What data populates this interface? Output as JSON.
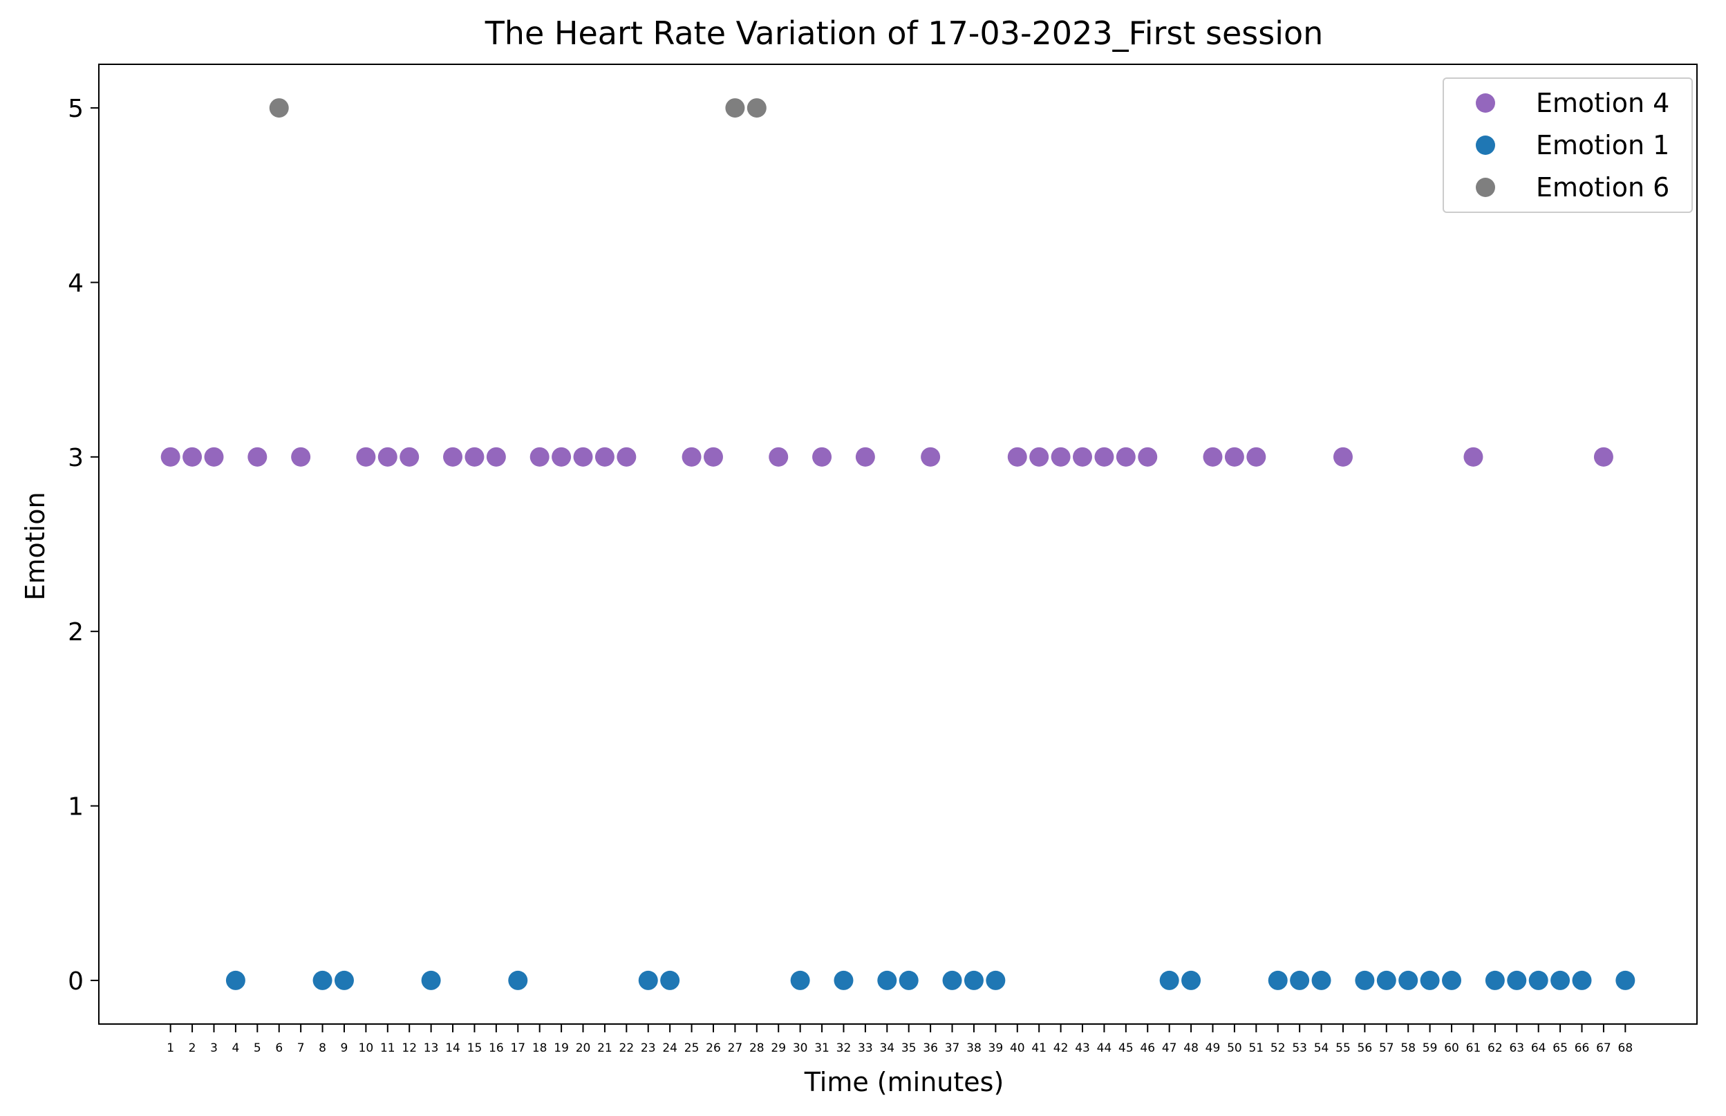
{
  "chart_data": {
    "type": "scatter",
    "title": "The Heart Rate Variation of 17-03-2023_First session",
    "xlabel": "Time (minutes)",
    "ylabel": "Emotion",
    "xlim": [
      -2.3,
      71.3
    ],
    "ylim": [
      -0.25,
      5.25
    ],
    "x_ticks": [
      1,
      2,
      3,
      4,
      5,
      6,
      7,
      8,
      9,
      10,
      11,
      12,
      13,
      14,
      15,
      16,
      17,
      18,
      19,
      20,
      21,
      22,
      23,
      24,
      25,
      26,
      27,
      28,
      29,
      30,
      31,
      32,
      33,
      34,
      35,
      36,
      37,
      38,
      39,
      40,
      41,
      42,
      43,
      44,
      45,
      46,
      47,
      48,
      49,
      50,
      51,
      52,
      53,
      54,
      55,
      56,
      57,
      58,
      59,
      60,
      61,
      62,
      63,
      64,
      65,
      66,
      67,
      68
    ],
    "x_tick_labels": [
      "1",
      "2",
      "3",
      "4",
      "5",
      "6",
      "7",
      "8",
      "9",
      "10",
      "11",
      "12",
      "13",
      "14",
      "15",
      "16",
      "17",
      "18",
      "19",
      "20",
      "21",
      "22",
      "23",
      "24",
      "25",
      "26",
      "27",
      "28",
      "29",
      "30",
      "31",
      "32",
      "33",
      "34",
      "35",
      "36",
      "37",
      "38",
      "39",
      "40",
      "41",
      "42",
      "43",
      "44",
      "45",
      "46",
      "47",
      "48",
      "49",
      "50",
      "51",
      "52",
      "53",
      "54",
      "55",
      "56",
      "57",
      "58",
      "59",
      "60",
      "61",
      "62",
      "63",
      "64",
      "65",
      "66",
      "67",
      "68"
    ],
    "y_ticks": [
      0,
      1,
      2,
      3,
      4,
      5
    ],
    "y_tick_labels": [
      "0",
      "1",
      "2",
      "3",
      "4",
      "5"
    ],
    "grid": false,
    "legend_position": "top-right",
    "series": [
      {
        "name": "Emotion 4",
        "color": "#9467bd",
        "x": [
          1,
          2,
          3,
          5,
          7,
          10,
          11,
          12,
          14,
          15,
          16,
          18,
          19,
          20,
          21,
          22,
          25,
          26,
          29,
          31,
          33,
          36,
          40,
          41,
          42,
          43,
          44,
          45,
          46,
          49,
          50,
          51,
          55,
          61,
          67
        ],
        "y": [
          3,
          3,
          3,
          3,
          3,
          3,
          3,
          3,
          3,
          3,
          3,
          3,
          3,
          3,
          3,
          3,
          3,
          3,
          3,
          3,
          3,
          3,
          3,
          3,
          3,
          3,
          3,
          3,
          3,
          3,
          3,
          3,
          3,
          3,
          3
        ]
      },
      {
        "name": "Emotion 1",
        "color": "#1f77b4",
        "x": [
          4,
          8,
          9,
          13,
          17,
          23,
          24,
          30,
          32,
          34,
          35,
          37,
          38,
          39,
          47,
          48,
          52,
          53,
          54,
          56,
          57,
          58,
          59,
          60,
          62,
          63,
          64,
          65,
          66,
          68
        ],
        "y": [
          0,
          0,
          0,
          0,
          0,
          0,
          0,
          0,
          0,
          0,
          0,
          0,
          0,
          0,
          0,
          0,
          0,
          0,
          0,
          0,
          0,
          0,
          0,
          0,
          0,
          0,
          0,
          0,
          0,
          0
        ]
      },
      {
        "name": "Emotion 6",
        "color": "#7f7f7f",
        "x": [
          6,
          27,
          28
        ],
        "y": [
          5,
          5,
          5
        ]
      }
    ]
  }
}
